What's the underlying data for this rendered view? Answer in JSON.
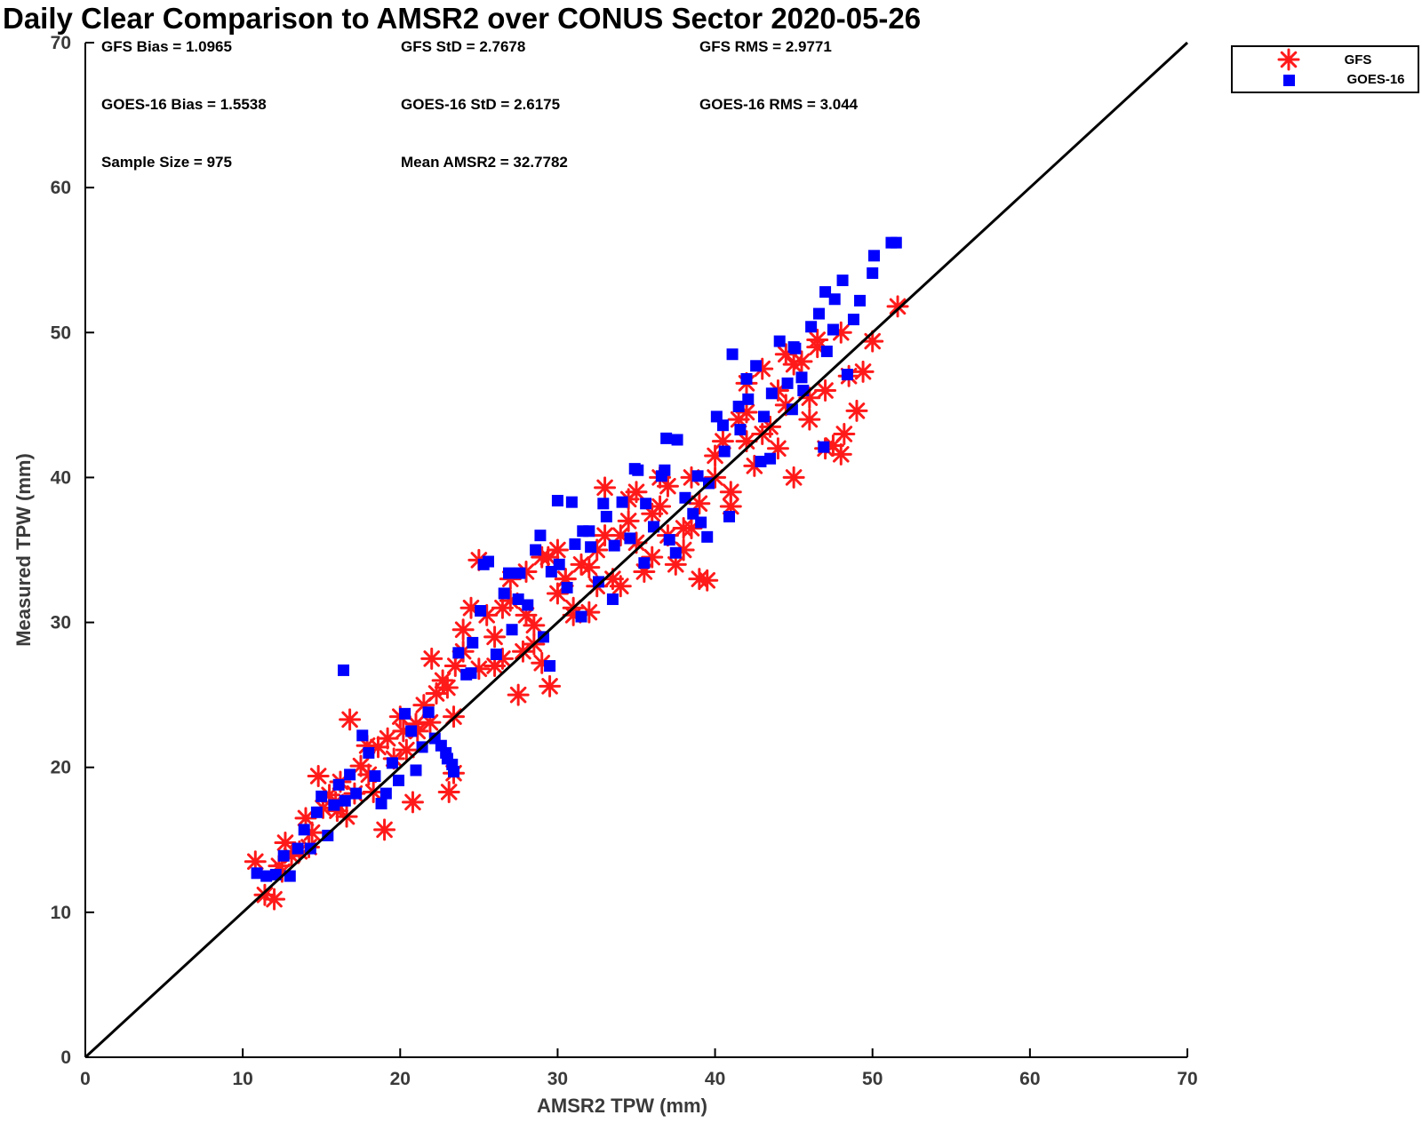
{
  "chart_data": {
    "type": "scatter",
    "title": "Daily Clear Comparison to AMSR2 over CONUS Sector 2020-05-26",
    "xlabel": "AMSR2 TPW (mm)",
    "ylabel": "Measured TPW (mm)",
    "xlim": [
      0,
      70
    ],
    "ylim": [
      0,
      70
    ],
    "xticks": [
      "0",
      "10",
      "20",
      "30",
      "40",
      "50",
      "60",
      "70"
    ],
    "yticks": [
      "0",
      "10",
      "20",
      "30",
      "40",
      "50",
      "60",
      "70"
    ],
    "grid": false,
    "legend_position": "top-right",
    "reference_line": {
      "x": [
        0,
        70
      ],
      "y": [
        0,
        70
      ],
      "color": "#000000"
    },
    "stats": [
      [
        "GFS Bias = 1.0965",
        "GFS StD = 2.7678",
        "GFS RMS = 2.9771"
      ],
      [
        "GOES-16 Bias = 1.5538",
        "GOES-16 StD = 2.6175",
        "GOES-16 RMS = 3.044"
      ],
      [
        "Sample Size = 975",
        "Mean AMSR2 = 32.7782",
        ""
      ]
    ],
    "series": [
      {
        "name": "GFS",
        "marker": "asterisk",
        "color": "#ff1a1a",
        "x": [
          10.8,
          11.4,
          12.0,
          12.3,
          12.7,
          13.1,
          13.6,
          14.0,
          14.4,
          14.8,
          15.1,
          15.5,
          15.9,
          16.2,
          16.6,
          16.8,
          17.1,
          17.5,
          17.9,
          18.3,
          18.6,
          19.0,
          19.2,
          19.6,
          20.0,
          20.4,
          20.8,
          21.1,
          21.5,
          21.9,
          22.3,
          22.7,
          23.1,
          23.4,
          23.5,
          24.0,
          24.5,
          25.0,
          25.5,
          26.0,
          26.5,
          27.0,
          27.5,
          27.8,
          28.0,
          28.5,
          29.0,
          29.5,
          30.0,
          30.5,
          31.0,
          31.5,
          32.0,
          32.5,
          33.0,
          33.5,
          34.0,
          34.5,
          35.0,
          35.5,
          36.0,
          36.5,
          37.0,
          37.5,
          38.0,
          38.5,
          39.0,
          39.5,
          40.0,
          40.5,
          41.0,
          41.5,
          42.0,
          42.5,
          43.0,
          43.5,
          44.0,
          44.5,
          45.0,
          45.5,
          46.0,
          46.5,
          47.0,
          47.5,
          48.0,
          48.5,
          49.0,
          49.4,
          50.0,
          51.6,
          22.0,
          23.0,
          24.0,
          25.0,
          26.0,
          27.0,
          28.0,
          29.0,
          30.0,
          31.0,
          32.0,
          33.0,
          34.0,
          35.0,
          36.0,
          37.0,
          38.0,
          39.0,
          40.0,
          41.0,
          42.0,
          43.0,
          44.0,
          45.0,
          46.0,
          47.0,
          48.0,
          12.5,
          14.2,
          16.0,
          18.0,
          20.2,
          21.0,
          23.4,
          29.4,
          26.5,
          28.5,
          30.5,
          32.5,
          34.5,
          36.5,
          38.5,
          42.0,
          44.5,
          46.5,
          48.2
        ],
        "y": [
          13.5,
          11.2,
          10.9,
          13.2,
          14.8,
          13.9,
          14.2,
          16.5,
          15.5,
          19.4,
          17.2,
          18.1,
          17.6,
          19.0,
          16.6,
          23.3,
          18.2,
          20.1,
          21.5,
          18.3,
          21.4,
          15.7,
          22.0,
          20.6,
          23.5,
          21.2,
          17.6,
          22.5,
          24.3,
          23.1,
          25.1,
          26.0,
          18.3,
          19.6,
          27.0,
          28.0,
          31.0,
          26.8,
          30.5,
          29.0,
          27.5,
          31.5,
          25.0,
          28.0,
          33.5,
          29.8,
          34.5,
          25.6,
          32.0,
          33.0,
          30.5,
          34.0,
          30.7,
          32.5,
          39.3,
          33.0,
          36.0,
          38.5,
          35.5,
          33.5,
          37.5,
          40.0,
          36.0,
          34.0,
          35.0,
          36.5,
          33.0,
          32.9,
          40.0,
          42.5,
          38.0,
          44.0,
          46.5,
          40.8,
          47.5,
          43.5,
          42.0,
          45.0,
          40.0,
          48.0,
          44.0,
          49.5,
          46.0,
          42.2,
          41.6,
          47.0,
          44.6,
          47.3,
          49.4,
          51.8,
          27.5,
          25.5,
          29.5,
          34.3,
          27.0,
          33.0,
          30.5,
          27.2,
          35.0,
          31.0,
          33.8,
          36.0,
          32.5,
          39.0,
          34.5,
          39.4,
          36.5,
          38.2,
          41.5,
          39.0,
          44.5,
          43.0,
          46.0,
          47.8,
          45.5,
          42.0,
          50.0,
          12.8,
          14.5,
          17.0,
          19.5,
          22.5,
          23.0,
          23.5,
          34.5,
          31.0,
          28.5,
          33.0,
          35.0,
          37.0,
          38.0,
          40.0,
          42.5,
          48.5,
          49.0,
          43.0
        ]
      },
      {
        "name": "GOES-16",
        "marker": "square",
        "color": "#0000ff",
        "x": [
          10.9,
          11.5,
          12.1,
          12.6,
          13.0,
          13.5,
          13.9,
          14.3,
          14.7,
          15.0,
          15.4,
          15.8,
          16.1,
          16.5,
          16.8,
          17.2,
          17.6,
          18.0,
          18.4,
          18.8,
          19.1,
          19.5,
          19.9,
          20.3,
          20.7,
          21.0,
          21.4,
          21.8,
          22.2,
          22.6,
          23.0,
          23.4,
          23.7,
          24.2,
          24.6,
          25.1,
          25.6,
          26.1,
          26.6,
          27.1,
          27.6,
          28.1,
          28.6,
          29.1,
          29.6,
          30.1,
          30.6,
          31.1,
          31.6,
          32.1,
          32.6,
          33.1,
          33.6,
          34.1,
          34.6,
          35.1,
          35.6,
          36.1,
          36.6,
          37.1,
          37.6,
          38.1,
          38.6,
          39.1,
          39.6,
          40.1,
          40.6,
          41.1,
          41.6,
          42.1,
          42.6,
          43.1,
          43.6,
          44.1,
          44.6,
          45.1,
          45.6,
          46.1,
          46.6,
          47.1,
          47.6,
          48.1,
          48.4,
          48.8,
          49.2,
          50.0,
          50.1,
          51.2,
          51.5,
          16.4,
          22.9,
          23.3,
          25.3,
          26.9,
          28.9,
          30.9,
          32.9,
          34.9,
          36.9,
          38.9,
          40.9,
          42.9,
          44.9,
          46.9,
          24.5,
          27.5,
          29.5,
          31.5,
          33.5,
          35.5,
          37.5,
          39.5,
          41.5,
          43.5,
          45.5,
          47.5,
          30.0,
          32.0,
          36.8,
          40.5,
          42.0,
          45.0,
          47.0
        ],
        "y": [
          12.7,
          12.5,
          12.6,
          13.9,
          12.5,
          14.4,
          15.7,
          14.4,
          16.9,
          18.0,
          15.3,
          17.4,
          18.8,
          17.7,
          19.5,
          18.2,
          22.2,
          21.0,
          19.4,
          17.5,
          18.2,
          20.3,
          19.1,
          23.7,
          22.5,
          19.8,
          21.4,
          23.8,
          22.0,
          21.5,
          20.6,
          19.7,
          27.9,
          26.4,
          28.6,
          30.8,
          34.2,
          27.8,
          32.0,
          29.5,
          33.4,
          31.2,
          35.0,
          29.0,
          33.5,
          34.0,
          32.4,
          35.4,
          36.3,
          35.2,
          32.8,
          37.3,
          35.3,
          38.3,
          35.8,
          40.5,
          38.2,
          36.6,
          40.1,
          35.7,
          42.6,
          38.6,
          37.5,
          36.9,
          39.6,
          44.2,
          41.8,
          48.5,
          43.3,
          45.4,
          47.7,
          44.2,
          45.8,
          49.4,
          46.5,
          48.9,
          46.0,
          50.4,
          51.3,
          48.7,
          52.3,
          53.6,
          47.1,
          50.9,
          52.2,
          54.1,
          55.3,
          56.2,
          56.2,
          26.7,
          21.0,
          20.2,
          34.0,
          33.4,
          36.0,
          38.3,
          38.2,
          40.6,
          42.7,
          40.1,
          37.3,
          41.1,
          44.7,
          42.1,
          26.5,
          31.6,
          27.0,
          30.4,
          31.6,
          34.1,
          34.8,
          35.9,
          44.9,
          41.3,
          46.9,
          50.2,
          38.4,
          36.3,
          40.5,
          43.6,
          46.8,
          49.0,
          52.8
        ]
      }
    ]
  }
}
